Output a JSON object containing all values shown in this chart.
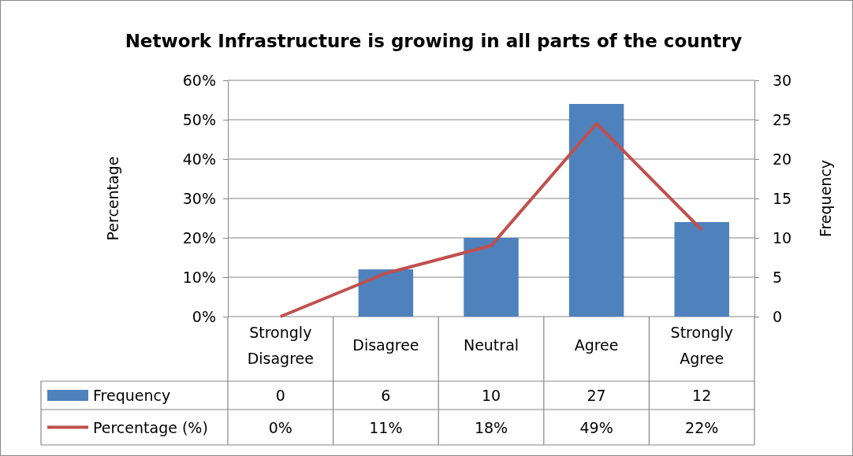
{
  "chart_data": {
    "type": "bar",
    "title": "Network Infrastructure is growing in all parts of the country",
    "ylabel": "Percentage",
    "y2label": "Frequency",
    "categories": [
      "Strongly Disagree",
      "Disagree",
      "Neutral",
      "Agree",
      "Strongly Agree"
    ],
    "series": [
      {
        "name": "Frequency",
        "axis": "y2",
        "color": "#4f81bd",
        "values": [
          0,
          6,
          10,
          27,
          12
        ],
        "value_labels": [
          "0",
          "6",
          "10",
          "27",
          "12"
        ]
      },
      {
        "name": "Percentage (%)",
        "type": "line",
        "axis": "y",
        "color": "#c0504d",
        "values": [
          0,
          11,
          18,
          49,
          22
        ],
        "value_labels": [
          "0%",
          "11%",
          "18%",
          "49%",
          "22%"
        ]
      }
    ],
    "ylim": [
      0,
      60
    ],
    "yticks": [
      {
        "value": 0,
        "label": "0%"
      },
      {
        "value": 10,
        "label": "10%"
      },
      {
        "value": 20,
        "label": "20%"
      },
      {
        "value": 30,
        "label": "30%"
      },
      {
        "value": 40,
        "label": "40%"
      },
      {
        "value": 50,
        "label": "50%"
      },
      {
        "value": 60,
        "label": "60%"
      }
    ],
    "y2lim": [
      0,
      30
    ],
    "y2ticks": [
      0,
      5,
      10,
      15,
      20,
      25,
      30
    ],
    "grid": "y",
    "legend": "bottom",
    "marker": "none",
    "line_style": "solid"
  }
}
